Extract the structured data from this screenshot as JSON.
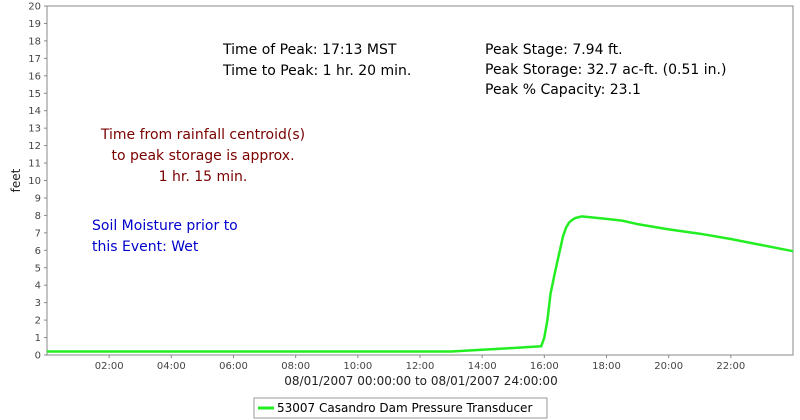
{
  "colors": {
    "series": "#22ee22",
    "annotation_red": "#7a0000",
    "annotation_blue": "#0000cc",
    "axis": "#888888"
  },
  "chart_data": {
    "type": "line",
    "title": "",
    "xlabel": "08/01/2007 00:00:00 to 08/01/2007 24:00:00",
    "ylabel": "feet",
    "xlim": [
      0,
      24
    ],
    "ylim": [
      0,
      20
    ],
    "x_ticks": [
      {
        "value": 2,
        "label": "02:00"
      },
      {
        "value": 4,
        "label": "04:00"
      },
      {
        "value": 6,
        "label": "06:00"
      },
      {
        "value": 8,
        "label": "08:00"
      },
      {
        "value": 10,
        "label": "10:00"
      },
      {
        "value": 12,
        "label": "12:00"
      },
      {
        "value": 14,
        "label": "14:00"
      },
      {
        "value": 16,
        "label": "16:00"
      },
      {
        "value": 18,
        "label": "18:00"
      },
      {
        "value": 20,
        "label": "20:00"
      },
      {
        "value": 22,
        "label": "22:00"
      }
    ],
    "y_ticks": [
      0,
      1,
      2,
      3,
      4,
      5,
      6,
      7,
      8,
      9,
      10,
      11,
      12,
      13,
      14,
      15,
      16,
      17,
      18,
      19,
      20
    ],
    "grid": false,
    "legend_position": "bottom-center",
    "series": [
      {
        "name": "53007 Casandro Dam Pressure Transducer",
        "x": [
          0,
          2,
          4,
          6,
          8,
          10,
          12,
          13,
          14,
          15,
          15.9,
          16.0,
          16.1,
          16.2,
          16.35,
          16.5,
          16.6,
          16.7,
          16.8,
          16.9,
          17.0,
          17.2,
          18.0,
          18.5,
          19.0,
          20.0,
          21.0,
          22.0,
          23.0,
          24.0
        ],
        "y": [
          0.2,
          0.2,
          0.2,
          0.2,
          0.2,
          0.2,
          0.2,
          0.2,
          0.3,
          0.4,
          0.5,
          1.0,
          2.0,
          3.5,
          4.8,
          6.0,
          6.8,
          7.3,
          7.6,
          7.75,
          7.85,
          7.94,
          7.8,
          7.7,
          7.5,
          7.2,
          6.95,
          6.65,
          6.3,
          5.95
        ]
      }
    ],
    "annotations": {
      "peak_time": [
        "Time of Peak: 17:13 MST",
        "Time to Peak: 1 hr. 20 min."
      ],
      "peak_stats": [
        "Peak Stage: 7.94 ft.",
        "Peak Storage: 32.7 ac-ft. (0.51 in.)",
        "Peak % Capacity: 23.1"
      ],
      "centroid": [
        "Time from rainfall centroid(s)",
        "to peak storage is approx.",
        "1 hr. 15 min."
      ],
      "soil": [
        "Soil Moisture prior to",
        "this Event: Wet"
      ]
    }
  }
}
